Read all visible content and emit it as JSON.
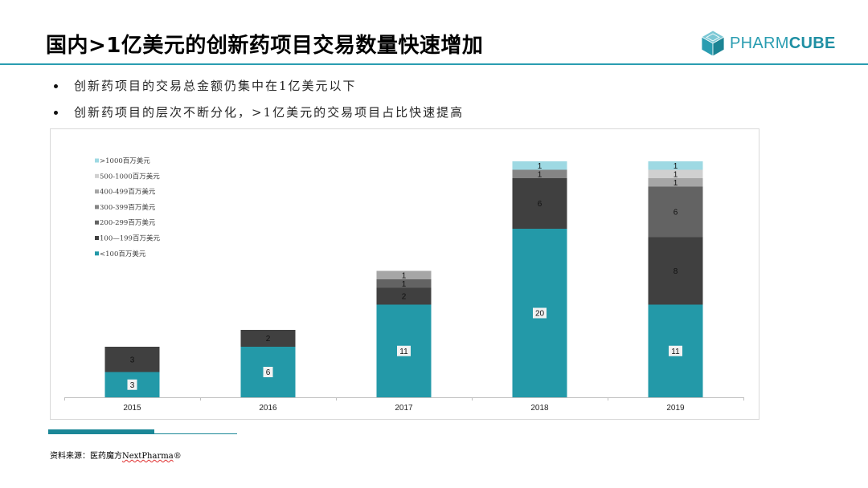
{
  "slide": {
    "title": "国内>1亿美元的创新药项目交易数量快速增加",
    "bullets": [
      "创新药项目的交易总金额仍集中在1亿美元以下",
      "创新药项目的层次不断分化，>1亿美元的交易项目占比快速提高"
    ],
    "source": {
      "prefix": "资料来源：医药魔方",
      "brand": "NextPharma",
      "mark": "®"
    }
  },
  "logo": {
    "icon": "cube-icon",
    "text_light": "PHARM",
    "text_bold": "CUBE",
    "color": "#2a9db1"
  },
  "chart_data": {
    "type": "bar",
    "stacked": true,
    "categories": [
      "2015",
      "2016",
      "2017",
      "2018",
      "2019"
    ],
    "series": [
      {
        "name": "<100百万美元",
        "color": "#2399a8",
        "values": [
          3,
          6,
          11,
          20,
          11
        ]
      },
      {
        "name": "100—199百万美元",
        "color": "#404040",
        "values": [
          3,
          2,
          2,
          6,
          8
        ]
      },
      {
        "name": "200-299百万美元",
        "color": "#636363",
        "values": [
          0,
          0,
          1,
          0,
          6
        ]
      },
      {
        "name": "300-399百万美元",
        "color": "#858585",
        "values": [
          0,
          0,
          0,
          1,
          0
        ]
      },
      {
        "name": "400-499百万美元",
        "color": "#a6a6a6",
        "values": [
          0,
          0,
          1,
          0,
          1
        ]
      },
      {
        "name": "500-1000百万美元",
        "color": "#d0d0d0",
        "values": [
          0,
          0,
          0,
          0,
          1
        ]
      },
      {
        "name": ">1000百万美元",
        "color": "#9ed9e3",
        "values": [
          0,
          0,
          0,
          1,
          1
        ]
      }
    ],
    "legend_position": "top-left",
    "grid": false
  }
}
